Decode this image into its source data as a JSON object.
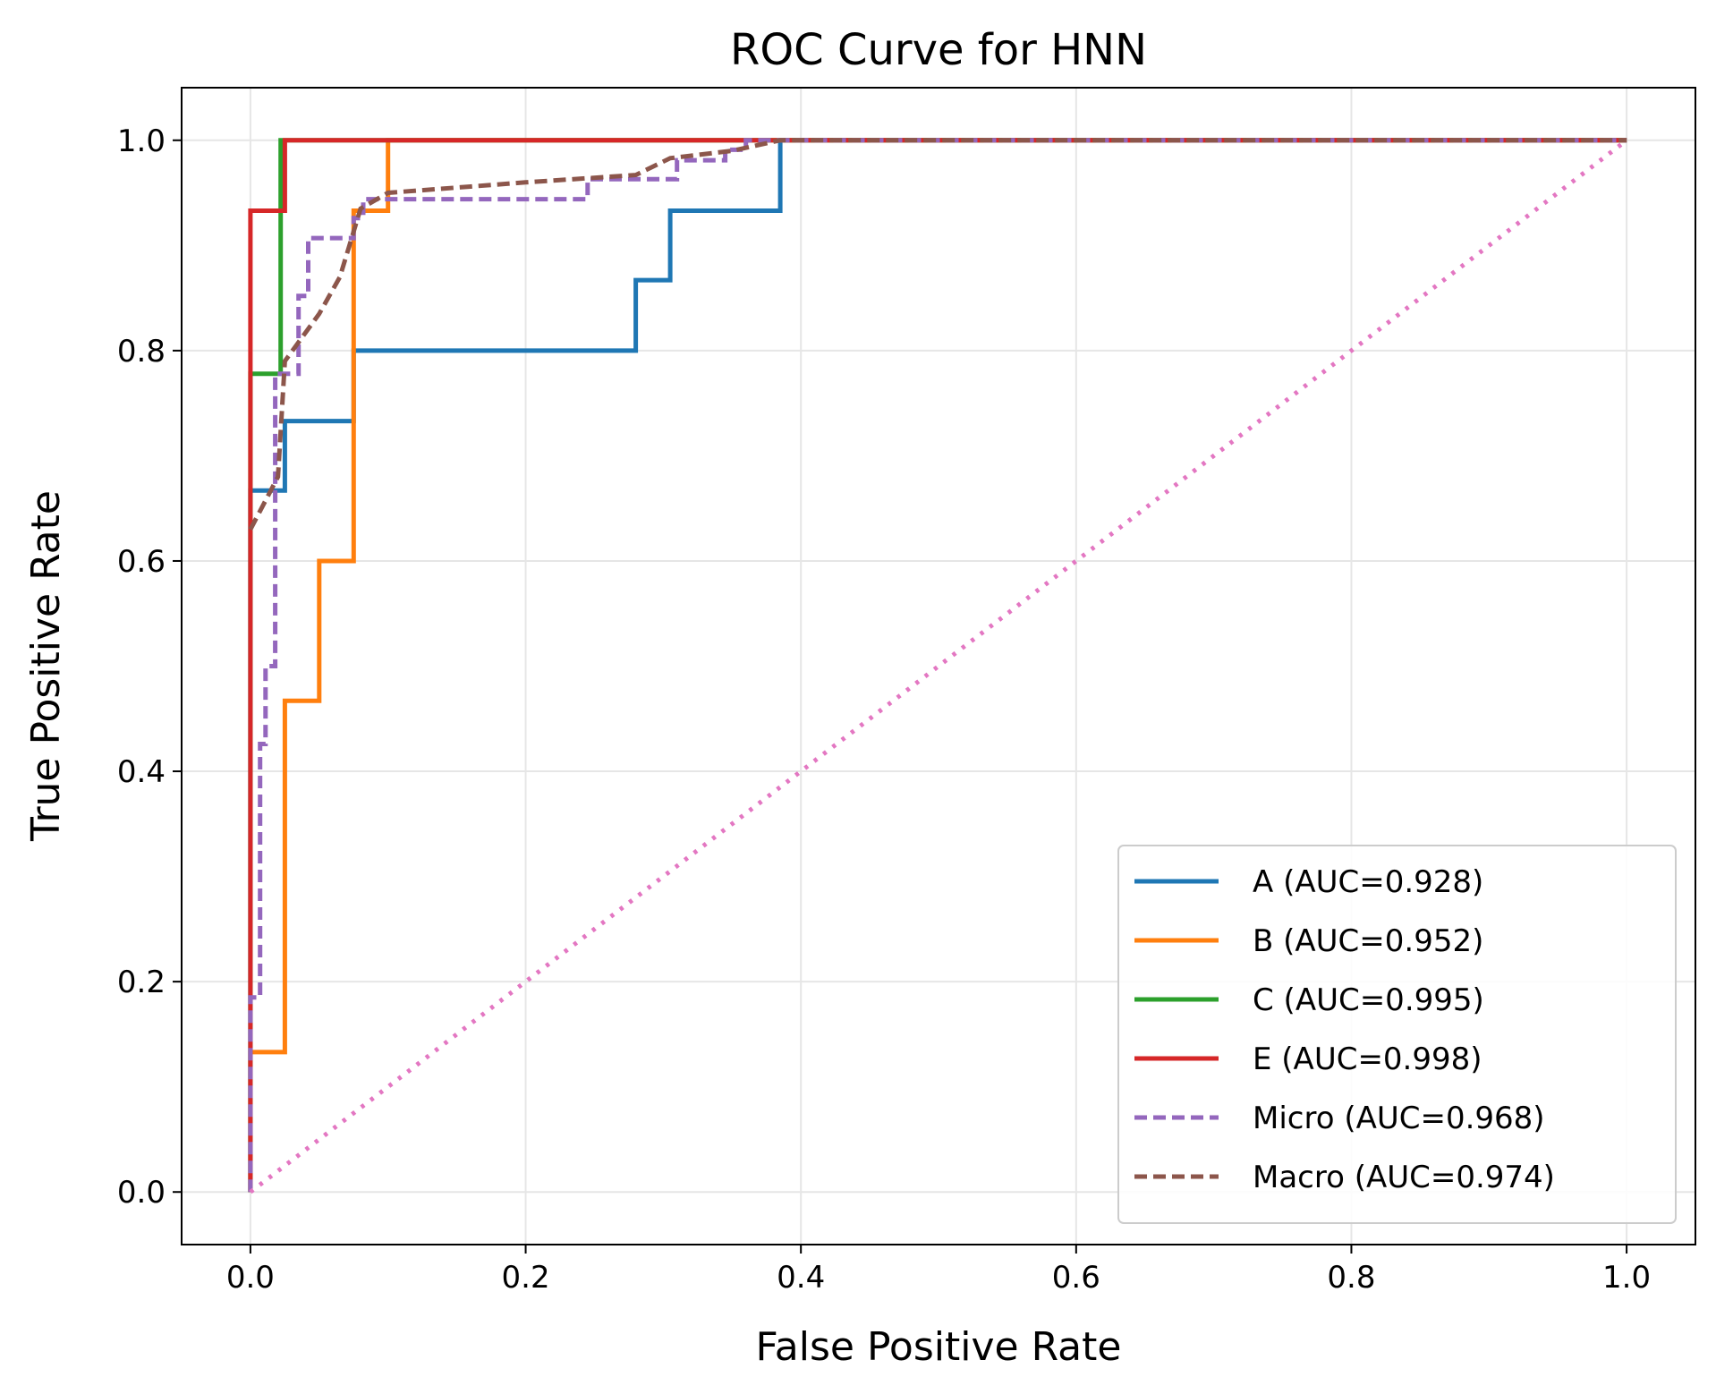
{
  "chart_data": {
    "type": "line",
    "title": "ROC Curve for HNN",
    "xlabel": "False Positive Rate",
    "ylabel": "True Positive Rate",
    "xlim": [
      -0.05,
      1.05
    ],
    "ylim": [
      -0.05,
      1.05
    ],
    "xticks": [
      0.0,
      0.2,
      0.4,
      0.6,
      0.8,
      1.0
    ],
    "yticks": [
      0.0,
      0.2,
      0.4,
      0.6,
      0.8,
      1.0
    ],
    "xtick_labels": [
      "0.0",
      "0.2",
      "0.4",
      "0.6",
      "0.8",
      "1.0"
    ],
    "ytick_labels": [
      "0.0",
      "0.2",
      "0.4",
      "0.6",
      "0.8",
      "1.0"
    ],
    "grid": true,
    "legend_position": "lower-right",
    "series": [
      {
        "name": "A (AUC=0.928)",
        "color": "#1f77b4",
        "style": "solid",
        "x": [
          0.0,
          0.0,
          0.0,
          0.025,
          0.025,
          0.075,
          0.075,
          0.28,
          0.28,
          0.305,
          0.305,
          0.385,
          0.385,
          1.0
        ],
        "y": [
          0.0,
          0.667,
          0.667,
          0.667,
          0.733,
          0.733,
          0.8,
          0.8,
          0.867,
          0.867,
          0.933,
          0.933,
          1.0,
          1.0
        ]
      },
      {
        "name": "B (AUC=0.952)",
        "color": "#ff7f0e",
        "style": "solid",
        "x": [
          0.0,
          0.0,
          0.025,
          0.025,
          0.05,
          0.05,
          0.075,
          0.075,
          0.1,
          0.1,
          1.0
        ],
        "y": [
          0.0,
          0.133,
          0.133,
          0.467,
          0.467,
          0.6,
          0.6,
          0.933,
          0.933,
          1.0,
          1.0
        ]
      },
      {
        "name": "C (AUC=0.995)",
        "color": "#2ca02c",
        "style": "solid",
        "x": [
          0.0,
          0.0,
          0.022,
          0.022,
          1.0
        ],
        "y": [
          0.0,
          0.778,
          0.778,
          1.0,
          1.0
        ]
      },
      {
        "name": "E (AUC=0.998)",
        "color": "#d62728",
        "style": "solid",
        "x": [
          0.0,
          0.0,
          0.025,
          0.025,
          1.0
        ],
        "y": [
          0.0,
          0.933,
          0.933,
          1.0,
          1.0
        ]
      },
      {
        "name": "Micro (AUC=0.968)",
        "color": "#9467bd",
        "style": "dashed",
        "x": [
          0.0,
          0.0,
          0.007,
          0.007,
          0.011,
          0.011,
          0.018,
          0.018,
          0.025,
          0.025,
          0.035,
          0.035,
          0.042,
          0.042,
          0.075,
          0.075,
          0.082,
          0.082,
          0.245,
          0.245,
          0.31,
          0.31,
          0.345,
          0.345,
          0.36,
          0.36,
          1.0
        ],
        "y": [
          0.0,
          0.185,
          0.185,
          0.426,
          0.426,
          0.5,
          0.5,
          0.778,
          0.778,
          0.778,
          0.778,
          0.852,
          0.852,
          0.907,
          0.907,
          0.926,
          0.926,
          0.944,
          0.944,
          0.963,
          0.963,
          0.981,
          0.981,
          0.991,
          0.991,
          1.0,
          1.0
        ]
      },
      {
        "name": "Macro (AUC=0.974)",
        "color": "#8c564b",
        "style": "dashed",
        "x": [
          0.0,
          0.02,
          0.025,
          0.05,
          0.065,
          0.08,
          0.1,
          0.2,
          0.28,
          0.305,
          0.35,
          0.385,
          1.0
        ],
        "y": [
          0.63,
          0.68,
          0.79,
          0.835,
          0.87,
          0.935,
          0.95,
          0.96,
          0.967,
          0.983,
          0.99,
          1.0,
          1.0
        ]
      },
      {
        "name": "",
        "color": "#e377c2",
        "style": "dotted",
        "x": [
          0.0,
          1.0
        ],
        "y": [
          0.0,
          1.0
        ]
      }
    ]
  }
}
